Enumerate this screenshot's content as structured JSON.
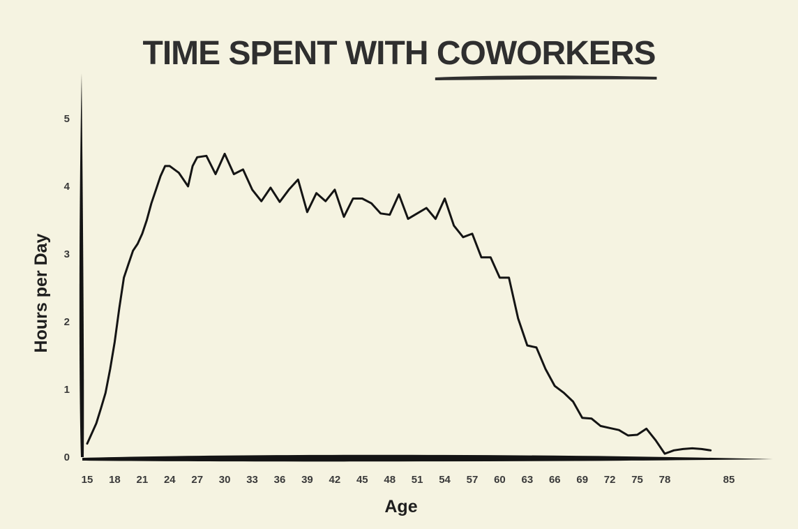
{
  "chart_data": {
    "type": "line",
    "title_parts": [
      "TIME SPENT WITH ",
      "COWORKERS"
    ],
    "title_underlined": "COWORKERS",
    "xlabel": "Age",
    "ylabel": "Hours per Day",
    "xlim": [
      15,
      85
    ],
    "ylim": [
      0,
      5
    ],
    "xticks": [
      15,
      18,
      21,
      24,
      27,
      30,
      33,
      36,
      39,
      42,
      45,
      48,
      51,
      54,
      57,
      60,
      63,
      66,
      69,
      72,
      75,
      78,
      85
    ],
    "yticks": [
      0,
      1,
      2,
      3,
      4,
      5
    ],
    "grid": false,
    "line_color": "#141414",
    "background": "#f5f3e1",
    "series": [
      {
        "x": [
          15,
          15.5,
          16,
          16.5,
          17,
          17.5,
          18,
          18.5,
          19,
          19.5,
          20,
          20.5,
          21,
          21.5,
          22,
          22.5,
          23,
          23.5,
          24,
          25,
          26,
          26.5,
          27,
          28,
          29,
          30,
          31,
          32,
          33,
          34,
          35,
          36,
          37,
          38,
          39,
          40,
          41,
          42,
          43,
          44,
          45,
          46,
          47,
          48,
          49,
          50,
          51,
          52,
          53,
          54,
          55,
          56,
          57,
          58,
          59,
          60,
          61,
          62,
          63,
          64,
          65,
          66,
          67,
          68,
          69,
          70,
          71,
          72,
          73,
          74,
          75,
          76,
          77,
          78,
          79,
          80,
          81,
          82,
          83
        ],
        "y": [
          0.2,
          0.35,
          0.5,
          0.72,
          0.95,
          1.3,
          1.7,
          2.2,
          2.65,
          2.85,
          3.05,
          3.15,
          3.3,
          3.5,
          3.75,
          3.95,
          4.15,
          4.3,
          4.3,
          4.2,
          4.0,
          4.3,
          4.43,
          4.45,
          4.18,
          4.48,
          4.18,
          4.25,
          3.95,
          3.78,
          3.98,
          3.77,
          3.95,
          4.1,
          3.62,
          3.9,
          3.78,
          3.95,
          3.55,
          3.82,
          3.82,
          3.75,
          3.6,
          3.58,
          3.88,
          3.52,
          3.6,
          3.68,
          3.52,
          3.82,
          3.42,
          3.25,
          3.3,
          2.95,
          2.95,
          2.65,
          2.65,
          2.05,
          1.65,
          1.62,
          1.3,
          1.05,
          0.95,
          0.82,
          0.58,
          0.57,
          0.46,
          0.43,
          0.4,
          0.32,
          0.33,
          0.42,
          0.25,
          0.05,
          0.1,
          0.12,
          0.13,
          0.12,
          0.1
        ]
      }
    ]
  }
}
